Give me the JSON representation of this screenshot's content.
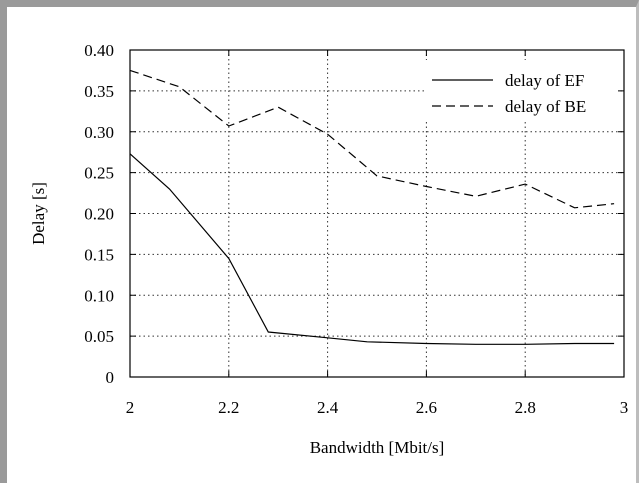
{
  "chart_data": {
    "type": "line",
    "title": "",
    "xlabel": "Bandwidth [Mbit/s]",
    "ylabel": "Delay [s]",
    "xlim": [
      2,
      3
    ],
    "ylim": [
      0,
      0.4
    ],
    "x_ticks": [
      2,
      2.2,
      2.4,
      2.6,
      2.8,
      3
    ],
    "x_tick_labels": [
      "2",
      "2.2",
      "2.4",
      "2.6",
      "2.8",
      "3"
    ],
    "y_ticks": [
      0,
      0.05,
      0.1,
      0.15,
      0.2,
      0.25,
      0.3,
      0.35,
      0.4
    ],
    "y_tick_labels": [
      "0",
      "0.05",
      "0.10",
      "0.15",
      "0.20",
      "0.25",
      "0.30",
      "0.35",
      "0.40"
    ],
    "grid": true,
    "legend_position": "top-right",
    "series": [
      {
        "name": "delay of EF",
        "style": "solid",
        "x": [
          2.0,
          2.08,
          2.2,
          2.28,
          2.4,
          2.48,
          2.6,
          2.7,
          2.8,
          2.9,
          2.98
        ],
        "y": [
          0.273,
          0.23,
          0.145,
          0.055,
          0.048,
          0.043,
          0.041,
          0.04,
          0.04,
          0.041,
          0.041
        ]
      },
      {
        "name": "delay of BE",
        "style": "dashed",
        "x": [
          2.0,
          2.1,
          2.2,
          2.3,
          2.4,
          2.5,
          2.6,
          2.7,
          2.8,
          2.9,
          2.98
        ],
        "y": [
          0.375,
          0.355,
          0.307,
          0.33,
          0.297,
          0.246,
          0.233,
          0.221,
          0.236,
          0.207,
          0.212
        ]
      }
    ]
  }
}
